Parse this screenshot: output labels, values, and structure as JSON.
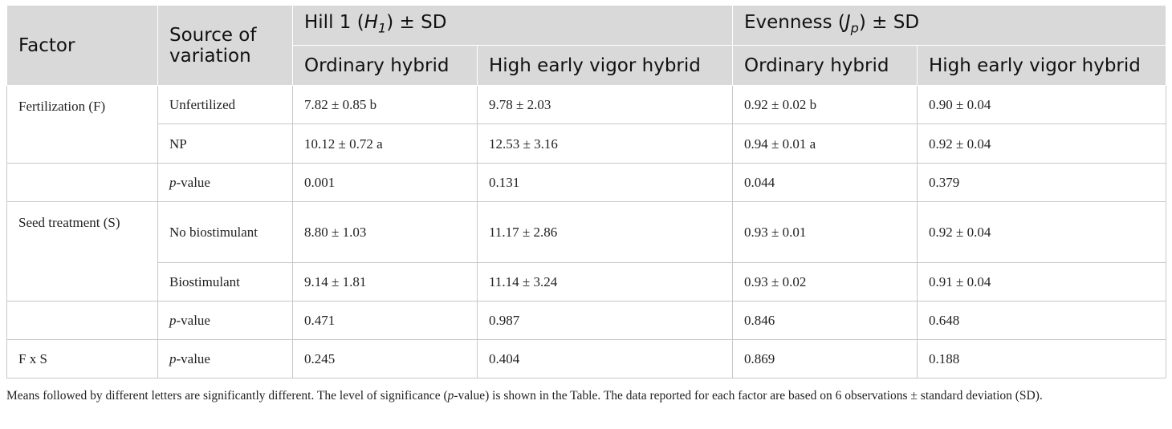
{
  "table": {
    "headers": {
      "factor": "Factor",
      "source": "Source of variation",
      "hill_prefix": "Hill 1 (",
      "hill_var": "H",
      "hill_sub": "1",
      "hill_suffix": ") ± SD",
      "even_prefix": "Evenness (",
      "even_var": "J",
      "even_sub": "p",
      "even_suffix": ") ± SD",
      "ordinary": "Ordinary hybrid",
      "high_vigor": "High early vigor hybrid"
    },
    "pvalue_prefix": "p",
    "pvalue_suffix": "-value",
    "rows": [
      {
        "factor": "Fertilization (F)",
        "source": "Unfertilized",
        "hill_ord": "7.82 ± 0.85 b",
        "hill_hev": "9.78 ± 2.03",
        "even_ord": "0.92 ± 0.02 b",
        "even_hev": "0.90 ± 0.04"
      },
      {
        "factor": "",
        "source": "NP",
        "hill_ord": "10.12 ± 0.72 a",
        "hill_hev": "12.53 ± 3.16",
        "even_ord": "0.94 ± 0.01 a",
        "even_hev": "0.92 ± 0.04"
      },
      {
        "factor": "",
        "source": "p-value",
        "hill_ord": "0.001",
        "hill_hev": "0.131",
        "even_ord": "0.044",
        "even_hev": "0.379"
      },
      {
        "factor": "Seed treatment (S)",
        "source": "No biostimulant",
        "hill_ord": "8.80 ± 1.03",
        "hill_hev": "11.17 ± 2.86",
        "even_ord": "0.93 ± 0.01",
        "even_hev": "0.92 ± 0.04"
      },
      {
        "factor": "",
        "source": "Biostimulant",
        "hill_ord": "9.14 ± 1.81",
        "hill_hev": "11.14 ± 3.24",
        "even_ord": "0.93 ± 0.02",
        "even_hev": "0.91 ± 0.04"
      },
      {
        "factor": "",
        "source": "p-value",
        "hill_ord": "0.471",
        "hill_hev": "0.987",
        "even_ord": "0.846",
        "even_hev": "0.648"
      },
      {
        "factor": "F x S",
        "source": "p-value",
        "hill_ord": "0.245",
        "hill_hev": "0.404",
        "even_ord": "0.869",
        "even_hev": "0.188"
      }
    ]
  },
  "footnote": {
    "part1": "Means followed by different letters are significantly different. The level of significance (",
    "p": "p",
    "part2": "-value) is shown in the Table. The data reported for each factor are based on 6 observations ± standard deviation (SD)."
  }
}
